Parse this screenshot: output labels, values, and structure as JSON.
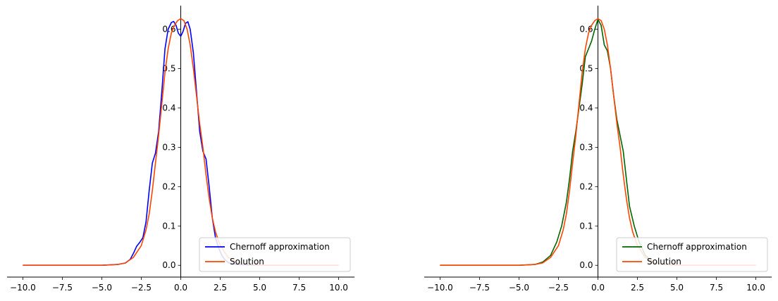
{
  "chart_data": [
    {
      "type": "line",
      "xlim": [
        -11,
        11
      ],
      "ylim": [
        -0.03,
        0.66
      ],
      "x_ticks": [
        -10,
        -7.5,
        -5,
        -2.5,
        0,
        2.5,
        5,
        7.5,
        10
      ],
      "x_tick_labels": [
        "−10.0",
        "−7.5",
        "−5.0",
        "−2.5",
        "0.0",
        "2.5",
        "5.0",
        "7.5",
        "10.0"
      ],
      "y_ticks": [
        0,
        0.1,
        0.2,
        0.3,
        0.4,
        0.5,
        0.6
      ],
      "y_tick_labels": [
        "0.0",
        "0.1",
        "0.2",
        "0.3",
        "0.4",
        "0.5",
        "0.6"
      ],
      "legend_position": "bottom-right",
      "grid": false,
      "series": [
        {
          "name": "Chernoff approximation",
          "color": "#0000ff",
          "x": [
            -10,
            -5,
            -4,
            -3.5,
            -3.2,
            -3,
            -2.8,
            -2.6,
            -2.4,
            -2.2,
            -2,
            -1.8,
            -1.6,
            -1.4,
            -1.2,
            -1,
            -0.8,
            -0.6,
            -0.45,
            -0.3,
            -0.15,
            0,
            0.15,
            0.3,
            0.45,
            0.6,
            0.8,
            1,
            1.2,
            1.4,
            1.6,
            1.8,
            2,
            2.2,
            2.4,
            2.6,
            2.8,
            3,
            3.5,
            4,
            5,
            10
          ],
          "y": [
            0,
            0,
            0.002,
            0.006,
            0.015,
            0.03,
            0.048,
            0.058,
            0.07,
            0.11,
            0.19,
            0.26,
            0.285,
            0.34,
            0.44,
            0.55,
            0.6,
            0.617,
            0.62,
            0.61,
            0.59,
            0.582,
            0.595,
            0.615,
            0.619,
            0.6,
            0.54,
            0.44,
            0.34,
            0.29,
            0.27,
            0.2,
            0.12,
            0.07,
            0.044,
            0.025,
            0.014,
            0.007,
            0.002,
            0.001,
            0,
            0
          ]
        },
        {
          "name": "Solution",
          "color": "#ff4500",
          "x": [
            -10,
            -5,
            -4,
            -3.5,
            -3,
            -2.5,
            -2.2,
            -2,
            -1.8,
            -1.6,
            -1.4,
            -1.2,
            -1,
            -0.8,
            -0.6,
            -0.4,
            -0.2,
            0,
            0.2,
            0.4,
            0.6,
            0.8,
            1,
            1.2,
            1.4,
            1.6,
            1.8,
            2,
            2.2,
            2.5,
            3,
            3.5,
            4,
            5,
            10
          ],
          "y": [
            0,
            0,
            0.002,
            0.006,
            0.02,
            0.05,
            0.09,
            0.13,
            0.19,
            0.26,
            0.33,
            0.41,
            0.49,
            0.55,
            0.59,
            0.61,
            0.622,
            0.627,
            0.622,
            0.6,
            0.56,
            0.5,
            0.43,
            0.36,
            0.3,
            0.23,
            0.17,
            0.12,
            0.085,
            0.05,
            0.02,
            0.008,
            0.003,
            0,
            0
          ]
        }
      ]
    },
    {
      "type": "line",
      "xlim": [
        -11,
        11
      ],
      "ylim": [
        -0.03,
        0.66
      ],
      "x_ticks": [
        -10,
        -7.5,
        -5,
        -2.5,
        0,
        2.5,
        5,
        7.5,
        10
      ],
      "x_tick_labels": [
        "−10.0",
        "−7.5",
        "−5.0",
        "−2.5",
        "0.0",
        "2.5",
        "5.0",
        "7.5",
        "10.0"
      ],
      "y_ticks": [
        0,
        0.1,
        0.2,
        0.3,
        0.4,
        0.5,
        0.6
      ],
      "y_tick_labels": [
        "0.0",
        "0.1",
        "0.2",
        "0.3",
        "0.4",
        "0.5",
        "0.6"
      ],
      "legend_position": "bottom-right",
      "grid": false,
      "series": [
        {
          "name": "Chernoff approximation",
          "color": "#006400",
          "x": [
            -10,
            -5,
            -4,
            -3.5,
            -3,
            -2.6,
            -2.3,
            -2,
            -1.8,
            -1.6,
            -1.4,
            -1.2,
            -1,
            -0.8,
            -0.6,
            -0.4,
            -0.2,
            0,
            0.2,
            0.4,
            0.6,
            0.8,
            1,
            1.2,
            1.4,
            1.6,
            1.8,
            2,
            2.3,
            2.6,
            3,
            3.5,
            4,
            5,
            10
          ],
          "y": [
            0,
            0,
            0.002,
            0.008,
            0.025,
            0.06,
            0.1,
            0.16,
            0.22,
            0.29,
            0.34,
            0.4,
            0.46,
            0.53,
            0.55,
            0.57,
            0.6,
            0.625,
            0.61,
            0.56,
            0.545,
            0.5,
            0.43,
            0.37,
            0.33,
            0.29,
            0.22,
            0.15,
            0.1,
            0.06,
            0.025,
            0.008,
            0.002,
            0,
            0
          ]
        },
        {
          "name": "Solution",
          "color": "#ff4500",
          "x": [
            -10,
            -5,
            -4,
            -3.5,
            -3,
            -2.5,
            -2.2,
            -2,
            -1.8,
            -1.6,
            -1.4,
            -1.2,
            -1,
            -0.8,
            -0.6,
            -0.4,
            -0.2,
            0,
            0.2,
            0.4,
            0.6,
            0.8,
            1,
            1.2,
            1.4,
            1.6,
            1.8,
            2,
            2.2,
            2.5,
            3,
            3.5,
            4,
            5,
            10
          ],
          "y": [
            0,
            0,
            0.002,
            0.006,
            0.02,
            0.05,
            0.09,
            0.13,
            0.19,
            0.26,
            0.33,
            0.41,
            0.49,
            0.55,
            0.59,
            0.61,
            0.622,
            0.627,
            0.622,
            0.6,
            0.56,
            0.5,
            0.43,
            0.36,
            0.3,
            0.23,
            0.17,
            0.12,
            0.085,
            0.05,
            0.02,
            0.008,
            0.003,
            0,
            0
          ]
        }
      ]
    }
  ]
}
